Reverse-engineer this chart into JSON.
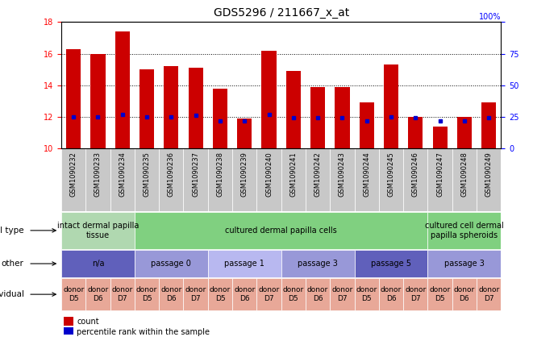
{
  "title": "GDS5296 / 211667_x_at",
  "samples": [
    "GSM1090232",
    "GSM1090233",
    "GSM1090234",
    "GSM1090235",
    "GSM1090236",
    "GSM1090237",
    "GSM1090238",
    "GSM1090239",
    "GSM1090240",
    "GSM1090241",
    "GSM1090242",
    "GSM1090243",
    "GSM1090244",
    "GSM1090245",
    "GSM1090246",
    "GSM1090247",
    "GSM1090248",
    "GSM1090249"
  ],
  "counts": [
    16.3,
    16.0,
    17.4,
    15.0,
    15.2,
    15.1,
    13.8,
    11.9,
    16.2,
    14.9,
    13.9,
    13.9,
    12.9,
    15.3,
    12.0,
    11.4,
    12.0,
    12.9
  ],
  "percentiles": [
    25,
    25,
    27,
    25,
    25,
    26,
    22,
    22,
    27,
    24,
    24,
    24,
    22,
    25,
    24,
    22,
    22,
    24
  ],
  "ymin": 10,
  "ymax": 18,
  "yticks": [
    10,
    12,
    14,
    16,
    18
  ],
  "y2ticks": [
    0,
    25,
    50,
    75,
    100
  ],
  "bar_color": "#cc0000",
  "dot_color": "#0000cc",
  "grid_lines": [
    12,
    14,
    16
  ],
  "sample_box_color": "#c8c8c8",
  "cell_type_groups": [
    {
      "label": "intact dermal papilla\ntissue",
      "start": 0,
      "end": 3,
      "color": "#b0d8b0"
    },
    {
      "label": "cultured dermal papilla cells",
      "start": 3,
      "end": 15,
      "color": "#80d080"
    },
    {
      "label": "cultured cell dermal\npapilla spheroids",
      "start": 15,
      "end": 18,
      "color": "#80d080"
    }
  ],
  "other_groups": [
    {
      "label": "n/a",
      "start": 0,
      "end": 3,
      "color": "#6060bb"
    },
    {
      "label": "passage 0",
      "start": 3,
      "end": 6,
      "color": "#9898d8"
    },
    {
      "label": "passage 1",
      "start": 6,
      "end": 9,
      "color": "#b8b8f0"
    },
    {
      "label": "passage 3",
      "start": 9,
      "end": 12,
      "color": "#9898d8"
    },
    {
      "label": "passage 5",
      "start": 12,
      "end": 15,
      "color": "#6060bb"
    },
    {
      "label": "passage 3",
      "start": 15,
      "end": 18,
      "color": "#9898d8"
    }
  ],
  "individual_groups": [
    {
      "label": "donor\nD5",
      "start": 0,
      "end": 1,
      "color": "#e8a898"
    },
    {
      "label": "donor\nD6",
      "start": 1,
      "end": 2,
      "color": "#e8a898"
    },
    {
      "label": "donor\nD7",
      "start": 2,
      "end": 3,
      "color": "#e8a898"
    },
    {
      "label": "donor\nD5",
      "start": 3,
      "end": 4,
      "color": "#e8a898"
    },
    {
      "label": "donor\nD6",
      "start": 4,
      "end": 5,
      "color": "#e8a898"
    },
    {
      "label": "donor\nD7",
      "start": 5,
      "end": 6,
      "color": "#e8a898"
    },
    {
      "label": "donor\nD5",
      "start": 6,
      "end": 7,
      "color": "#e8a898"
    },
    {
      "label": "donor\nD6",
      "start": 7,
      "end": 8,
      "color": "#e8a898"
    },
    {
      "label": "donor\nD7",
      "start": 8,
      "end": 9,
      "color": "#e8a898"
    },
    {
      "label": "donor\nD5",
      "start": 9,
      "end": 10,
      "color": "#e8a898"
    },
    {
      "label": "donor\nD6",
      "start": 10,
      "end": 11,
      "color": "#e8a898"
    },
    {
      "label": "donor\nD7",
      "start": 11,
      "end": 12,
      "color": "#e8a898"
    },
    {
      "label": "donor\nD5",
      "start": 12,
      "end": 13,
      "color": "#e8a898"
    },
    {
      "label": "donor\nD6",
      "start": 13,
      "end": 14,
      "color": "#e8a898"
    },
    {
      "label": "donor\nD7",
      "start": 14,
      "end": 15,
      "color": "#e8a898"
    },
    {
      "label": "donor\nD5",
      "start": 15,
      "end": 16,
      "color": "#e8a898"
    },
    {
      "label": "donor\nD6",
      "start": 16,
      "end": 17,
      "color": "#e8a898"
    },
    {
      "label": "donor\nD7",
      "start": 17,
      "end": 18,
      "color": "#e8a898"
    }
  ],
  "row_labels": [
    "cell type",
    "other",
    "individual"
  ],
  "legend_count_color": "#cc0000",
  "legend_pct_color": "#0000cc",
  "title_fontsize": 10,
  "tick_fontsize": 7,
  "row_label_fontsize": 7.5,
  "annotation_fontsize": 7,
  "sample_fontsize": 6
}
